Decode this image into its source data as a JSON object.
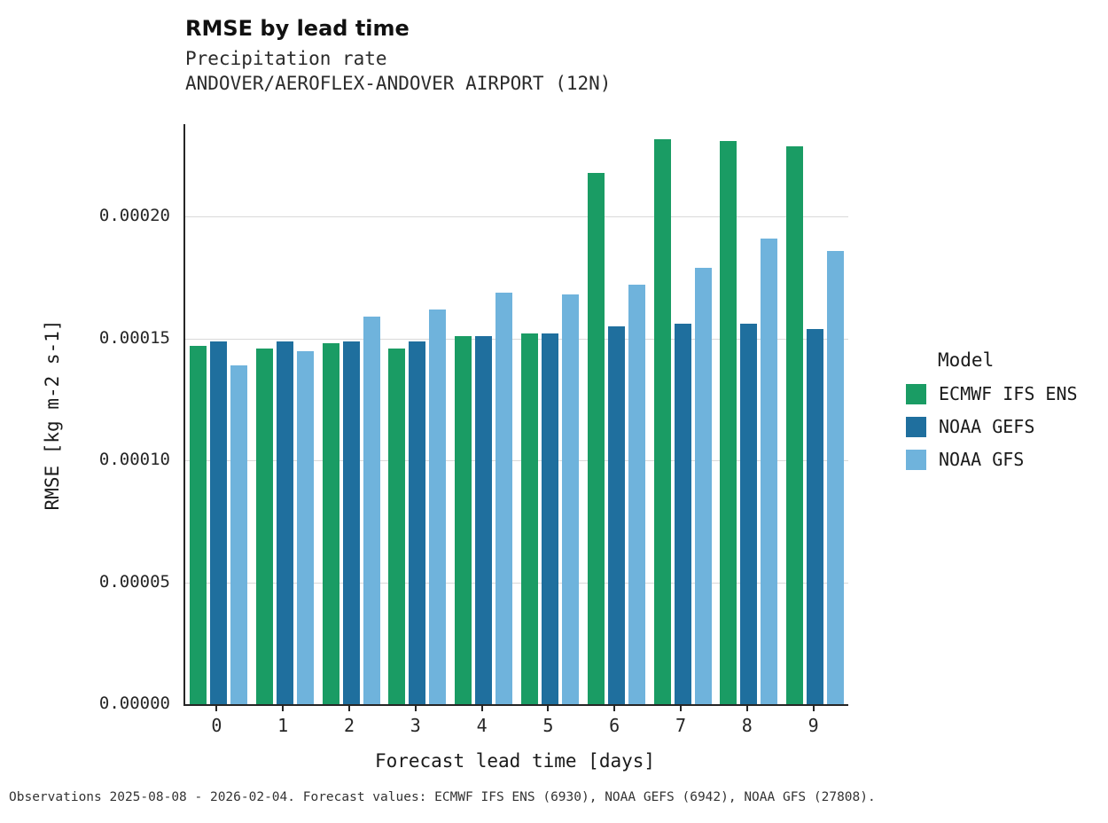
{
  "title": "RMSE by lead time",
  "subtitle_variable": "Precipitation rate",
  "subtitle_station": "ANDOVER/AEROFLEX-ANDOVER AIRPORT (12N)",
  "footer": "Observations 2025-08-08 - 2026-02-04. Forecast values: ECMWF IFS ENS (6930), NOAA GEFS (6942), NOAA GFS (27808).",
  "legend": {
    "title": "Model"
  },
  "chart_data": {
    "type": "bar",
    "title": "RMSE by lead time",
    "xlabel": "Forecast lead time [days]",
    "ylabel": "RMSE [kg m-2 s-1]",
    "categories": [
      "0",
      "1",
      "2",
      "3",
      "4",
      "5",
      "6",
      "7",
      "8",
      "9"
    ],
    "series": [
      {
        "name": "ECMWF IFS ENS",
        "color": "#1a9c64",
        "values": [
          0.000147,
          0.000146,
          0.000148,
          0.000146,
          0.000151,
          0.000152,
          0.000218,
          0.000232,
          0.000231,
          0.000229
        ]
      },
      {
        "name": "NOAA GEFS",
        "color": "#1f6f9e",
        "values": [
          0.000149,
          0.000149,
          0.000149,
          0.000149,
          0.000151,
          0.000152,
          0.000155,
          0.000156,
          0.000156,
          0.000154
        ]
      },
      {
        "name": "NOAA GFS",
        "color": "#6fb3dc",
        "values": [
          0.000139,
          0.000145,
          0.000159,
          0.000162,
          0.000169,
          0.000168,
          0.000172,
          0.000179,
          0.000191,
          0.000186
        ]
      }
    ],
    "yticks": [
      0.0,
      5e-05,
      0.0001,
      0.00015,
      0.0002
    ],
    "ytick_labels": [
      "0.00000",
      "0.00005",
      "0.00010",
      "0.00015",
      "0.00020"
    ],
    "ylim": [
      0,
      0.000238
    ],
    "grid": "horizontal",
    "legend_position": "right"
  }
}
